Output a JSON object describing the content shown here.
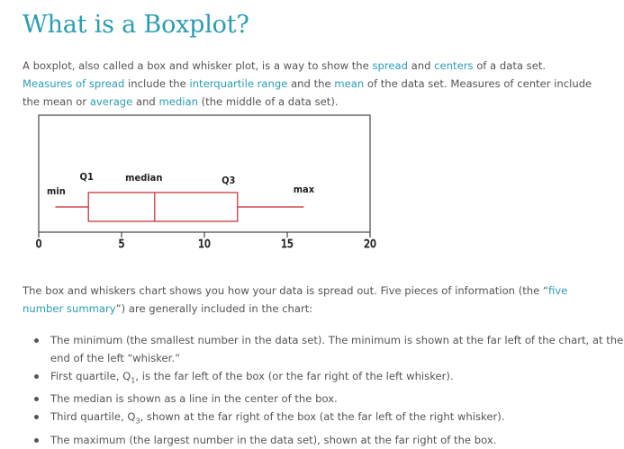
{
  "title": "What is a Boxplot?",
  "intro": {
    "t1": "A boxplot, also called a box and whisker plot, is a way to show the ",
    "l1": "spread",
    "t2": " and ",
    "l2": "centers",
    "t3": " of a data set. ",
    "l3": "Measures of spread",
    "t4": " include the ",
    "l4": "interquartile range",
    "t5": " and the ",
    "l5": "mean",
    "t6": " of the data set. Measures of center include the mean or ",
    "l6": "average",
    "t7": " and ",
    "l7": "median",
    "t8": " (the middle of a data set)."
  },
  "chart_data": {
    "type": "boxplot",
    "min": 1,
    "q1": 3,
    "median": 7,
    "q3": 12,
    "max": 16,
    "xlim": [
      0,
      20
    ],
    "xticks": [
      "0",
      "5",
      "10",
      "15",
      "20"
    ],
    "labels": {
      "min": "min",
      "q1": "Q1",
      "median": "median",
      "q3": "Q3",
      "max": "max"
    },
    "colors": {
      "box": "#c62828",
      "frame": "#222222"
    }
  },
  "summary": {
    "t1": "The box and whiskers chart shows you how your data is spread out. Five pieces of information (the “",
    "link": "five number summary",
    "t2": "”) are generally included in the chart:"
  },
  "bullets": {
    "b1": "The minimum (the smallest number in the data set). The minimum is shown at the far left of the chart, at the end of the left “whisker.”",
    "b2_pre": "First quartile, Q",
    "b2_sub": "1",
    "b2_post": ", is the far left of the box (or the far right of the left whisker).",
    "b3": "The median is shown as a line in the center of the box.",
    "b4_pre": "Third quartile, Q",
    "b4_sub": "3",
    "b4_post": ", shown at the far right of the box (at the far left of the right whisker).",
    "b5": "The maximum (the largest number in the data set), shown at the far right of the box."
  }
}
